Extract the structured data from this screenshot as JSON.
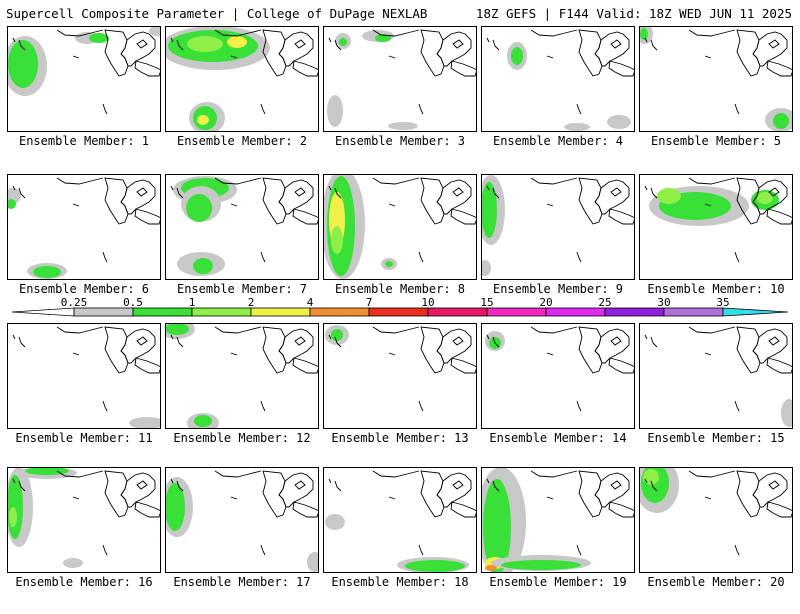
{
  "header": {
    "title_left": "Supercell Composite Parameter | College of DuPage NEXLAB",
    "title_right": "18Z GEFS | F144 Valid: 18Z WED JUN 11 2025"
  },
  "panel_label_prefix": "Ensemble Member:",
  "members": [
    "1",
    "2",
    "3",
    "4",
    "5",
    "6",
    "7",
    "8",
    "9",
    "10",
    "11",
    "12",
    "13",
    "14",
    "15",
    "16",
    "17",
    "18",
    "19",
    "20"
  ],
  "colorbar": {
    "labels": [
      "0.25",
      "0.5",
      "1",
      "2",
      "4",
      "7",
      "10",
      "15",
      "20",
      "25",
      "30",
      "35"
    ],
    "colors": [
      "#c8c8c8",
      "#38e038",
      "#90ee48",
      "#f0f048",
      "#f09030",
      "#e83020",
      "#e81868",
      "#f028c0",
      "#e028f0",
      "#9020e0",
      "#b070d8",
      "#30e0e8"
    ]
  },
  "colors": {
    "coastline": "#000000",
    "frame": "#000000"
  }
}
